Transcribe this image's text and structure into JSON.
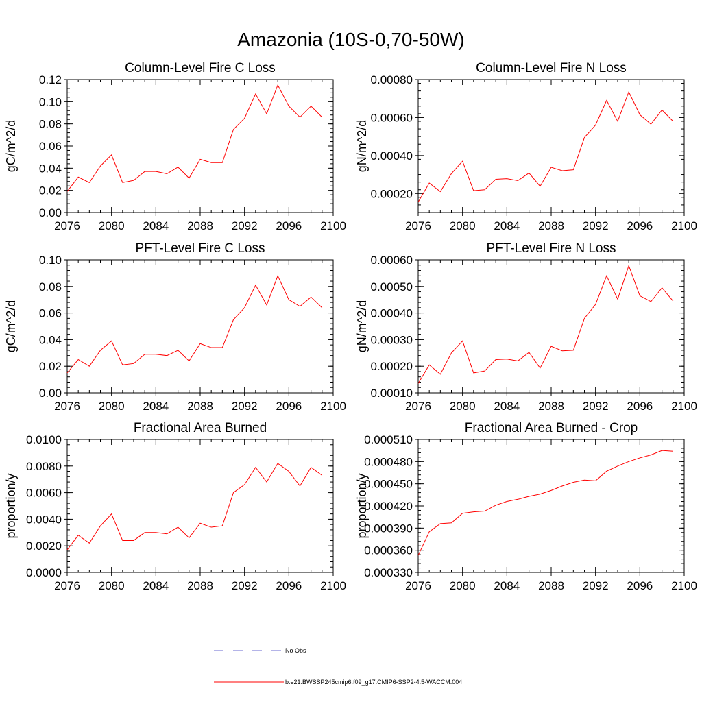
{
  "figure": {
    "title": "Amazonia (10S-0,70-50W)",
    "colors": {
      "series": "#ff0000",
      "obs": "#6a6ad0",
      "axes": "#000000"
    }
  },
  "chart_data": [
    {
      "type": "line",
      "title": "Column-Level Fire C Loss",
      "xlabel": "",
      "ylabel": "gC/m^2/d",
      "xlim": [
        2076,
        2100
      ],
      "ylim": [
        0.0,
        0.12
      ],
      "xticks": [
        2076,
        2080,
        2084,
        2088,
        2092,
        2096,
        2100
      ],
      "xtick_labels": [
        "2076",
        "2080",
        "2084",
        "2088",
        "2092",
        "2096",
        "2100"
      ],
      "yticks": [
        0.0,
        0.02,
        0.04,
        0.06,
        0.08,
        0.1,
        0.12
      ],
      "ytick_labels": [
        "0.00",
        "0.02",
        "0.04",
        "0.06",
        "0.08",
        "0.10",
        "0.12"
      ],
      "x": [
        2076,
        2077,
        2078,
        2079,
        2080,
        2081,
        2082,
        2083,
        2084,
        2085,
        2086,
        2087,
        2088,
        2089,
        2090,
        2091,
        2092,
        2093,
        2094,
        2095,
        2096,
        2097,
        2098,
        2099
      ],
      "series": [
        {
          "name": "b.e21.BWSSP245cmip6.f09_g17.CMIP6-SSP2-4.5-WACCM.004",
          "values": [
            0.019,
            0.032,
            0.027,
            0.042,
            0.052,
            0.027,
            0.029,
            0.037,
            0.037,
            0.035,
            0.041,
            0.031,
            0.048,
            0.045,
            0.045,
            0.075,
            0.085,
            0.107,
            0.089,
            0.115,
            0.096,
            0.086,
            0.096,
            0.086
          ]
        }
      ]
    },
    {
      "type": "line",
      "title": "Column-Level Fire N Loss",
      "xlabel": "",
      "ylabel": "gN/m^2/d",
      "xlim": [
        2076,
        2100
      ],
      "ylim": [
        0.0001,
        0.0008
      ],
      "xticks": [
        2076,
        2080,
        2084,
        2088,
        2092,
        2096,
        2100
      ],
      "xtick_labels": [
        "2076",
        "2080",
        "2084",
        "2088",
        "2092",
        "2096",
        "2100"
      ],
      "yticks": [
        0.0002,
        0.0004,
        0.0006,
        0.0008
      ],
      "ytick_labels": [
        "0.00020",
        "0.00040",
        "0.00060",
        "0.00080"
      ],
      "x": [
        2076,
        2077,
        2078,
        2079,
        2080,
        2081,
        2082,
        2083,
        2084,
        2085,
        2086,
        2087,
        2088,
        2089,
        2090,
        2091,
        2092,
        2093,
        2094,
        2095,
        2096,
        2097,
        2098,
        2099
      ],
      "series": [
        {
          "name": "b.e21.BWSSP245cmip6.f09_g17.CMIP6-SSP2-4.5-WACCM.004",
          "values": [
            0.000155,
            0.000255,
            0.00021,
            0.000305,
            0.00037,
            0.000215,
            0.00022,
            0.000275,
            0.000278,
            0.000268,
            0.000308,
            0.000238,
            0.000338,
            0.00032,
            0.000325,
            0.000495,
            0.00056,
            0.00069,
            0.00058,
            0.000735,
            0.000615,
            0.000565,
            0.00064,
            0.00058
          ]
        }
      ]
    },
    {
      "type": "line",
      "title": "PFT-Level Fire C Loss",
      "xlabel": "",
      "ylabel": "gC/m^2/d",
      "xlim": [
        2076,
        2100
      ],
      "ylim": [
        0.0,
        0.1
      ],
      "xticks": [
        2076,
        2080,
        2084,
        2088,
        2092,
        2096,
        2100
      ],
      "xtick_labels": [
        "2076",
        "2080",
        "2084",
        "2088",
        "2092",
        "2096",
        "2100"
      ],
      "yticks": [
        0.0,
        0.02,
        0.04,
        0.06,
        0.08,
        0.1
      ],
      "ytick_labels": [
        "0.00",
        "0.02",
        "0.04",
        "0.06",
        "0.08",
        "0.10"
      ],
      "x": [
        2076,
        2077,
        2078,
        2079,
        2080,
        2081,
        2082,
        2083,
        2084,
        2085,
        2086,
        2087,
        2088,
        2089,
        2090,
        2091,
        2092,
        2093,
        2094,
        2095,
        2096,
        2097,
        2098,
        2099
      ],
      "series": [
        {
          "name": "b.e21.BWSSP245cmip6.f09_g17.CMIP6-SSP2-4.5-WACCM.004",
          "values": [
            0.015,
            0.025,
            0.02,
            0.032,
            0.039,
            0.021,
            0.022,
            0.029,
            0.029,
            0.028,
            0.032,
            0.024,
            0.037,
            0.034,
            0.034,
            0.055,
            0.064,
            0.081,
            0.066,
            0.088,
            0.07,
            0.065,
            0.072,
            0.064
          ]
        }
      ]
    },
    {
      "type": "line",
      "title": "PFT-Level Fire N Loss",
      "xlabel": "",
      "ylabel": "gN/m^2/d",
      "xlim": [
        2076,
        2100
      ],
      "ylim": [
        0.0001,
        0.0006
      ],
      "xticks": [
        2076,
        2080,
        2084,
        2088,
        2092,
        2096,
        2100
      ],
      "xtick_labels": [
        "2076",
        "2080",
        "2084",
        "2088",
        "2092",
        "2096",
        "2100"
      ],
      "yticks": [
        0.0001,
        0.0002,
        0.0003,
        0.0004,
        0.0005,
        0.0006
      ],
      "ytick_labels": [
        "0.00010",
        "0.00020",
        "0.00030",
        "0.00040",
        "0.00050",
        "0.00060"
      ],
      "x": [
        2076,
        2077,
        2078,
        2079,
        2080,
        2081,
        2082,
        2083,
        2084,
        2085,
        2086,
        2087,
        2088,
        2089,
        2090,
        2091,
        2092,
        2093,
        2094,
        2095,
        2096,
        2097,
        2098,
        2099
      ],
      "series": [
        {
          "name": "b.e21.BWSSP245cmip6.f09_g17.CMIP6-SSP2-4.5-WACCM.004",
          "values": [
            0.000135,
            0.000205,
            0.00017,
            0.00025,
            0.000295,
            0.000175,
            0.000182,
            0.000225,
            0.000227,
            0.00022,
            0.000252,
            0.000193,
            0.000275,
            0.000258,
            0.00026,
            0.00038,
            0.000432,
            0.00054,
            0.000452,
            0.000578,
            0.000465,
            0.000443,
            0.000495,
            0.000445
          ]
        }
      ]
    },
    {
      "type": "line",
      "title": "Fractional Area Burned",
      "xlabel": "",
      "ylabel": "proportion/y",
      "xlim": [
        2076,
        2100
      ],
      "ylim": [
        0.0,
        0.01
      ],
      "xticks": [
        2076,
        2080,
        2084,
        2088,
        2092,
        2096,
        2100
      ],
      "xtick_labels": [
        "2076",
        "2080",
        "2084",
        "2088",
        "2092",
        "2096",
        "2100"
      ],
      "yticks": [
        0.0,
        0.002,
        0.004,
        0.006,
        0.008,
        0.01
      ],
      "ytick_labels": [
        "0.0000",
        "0.0020",
        "0.0040",
        "0.0060",
        "0.0080",
        "0.0100"
      ],
      "x": [
        2076,
        2077,
        2078,
        2079,
        2080,
        2081,
        2082,
        2083,
        2084,
        2085,
        2086,
        2087,
        2088,
        2089,
        2090,
        2091,
        2092,
        2093,
        2094,
        2095,
        2096,
        2097,
        2098,
        2099
      ],
      "series": [
        {
          "name": "b.e21.BWSSP245cmip6.f09_g17.CMIP6-SSP2-4.5-WACCM.004",
          "values": [
            0.0017,
            0.0028,
            0.0022,
            0.0035,
            0.0044,
            0.0024,
            0.0024,
            0.003,
            0.003,
            0.0029,
            0.0034,
            0.0026,
            0.0037,
            0.0034,
            0.0035,
            0.006,
            0.0066,
            0.0079,
            0.0068,
            0.0082,
            0.0076,
            0.0065,
            0.0079,
            0.0073
          ]
        }
      ]
    },
    {
      "type": "line",
      "title": "Fractional Area Burned - Crop",
      "xlabel": "",
      "ylabel": "proportion/y",
      "xlim": [
        2076,
        2100
      ],
      "ylim": [
        0.00033,
        0.00051
      ],
      "xticks": [
        2076,
        2080,
        2084,
        2088,
        2092,
        2096,
        2100
      ],
      "xtick_labels": [
        "2076",
        "2080",
        "2084",
        "2088",
        "2092",
        "2096",
        "2100"
      ],
      "yticks": [
        0.00033,
        0.00036,
        0.00039,
        0.00042,
        0.00045,
        0.00048,
        0.00051
      ],
      "ytick_labels": [
        "0.000330",
        "0.000360",
        "0.000390",
        "0.000420",
        "0.000450",
        "0.000480",
        "0.000510"
      ],
      "x": [
        2076,
        2077,
        2078,
        2079,
        2080,
        2081,
        2082,
        2083,
        2084,
        2085,
        2086,
        2087,
        2088,
        2089,
        2090,
        2091,
        2092,
        2093,
        2094,
        2095,
        2096,
        2097,
        2098,
        2099
      ],
      "series": [
        {
          "name": "b.e21.BWSSP245cmip6.f09_g17.CMIP6-SSP2-4.5-WACCM.004",
          "values": [
            0.000353,
            0.000385,
            0.000396,
            0.000397,
            0.00041,
            0.000412,
            0.000413,
            0.000421,
            0.000426,
            0.000429,
            0.000433,
            0.000436,
            0.000441,
            0.000447,
            0.000452,
            0.000455,
            0.000454,
            0.000467,
            0.000474,
            0.00048,
            0.000485,
            0.000489,
            0.000495,
            0.000494
          ]
        }
      ]
    }
  ],
  "legend": {
    "items": [
      {
        "label": "No Obs",
        "style": "dashed",
        "color": "#6a6ad0"
      },
      {
        "label": "b.e21.BWSSP245cmip6.f09_g17.CMIP6-SSP2-4.5-WACCM.004",
        "style": "solid",
        "color": "#ff0000"
      }
    ]
  }
}
